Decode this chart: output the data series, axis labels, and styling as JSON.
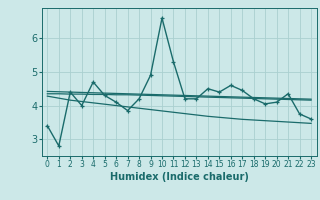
{
  "title": "",
  "xlabel": "Humidex (Indice chaleur)",
  "background_color": "#cce8e8",
  "grid_color": "#aad0d0",
  "line_color": "#1a6b6b",
  "x_values": [
    0,
    1,
    2,
    3,
    4,
    5,
    6,
    7,
    8,
    9,
    10,
    11,
    12,
    13,
    14,
    15,
    16,
    17,
    18,
    19,
    20,
    21,
    22,
    23
  ],
  "y_main": [
    3.4,
    2.8,
    4.4,
    4.0,
    4.7,
    4.3,
    4.1,
    3.85,
    4.2,
    4.9,
    6.6,
    5.3,
    4.2,
    4.2,
    4.5,
    4.4,
    4.6,
    4.45,
    4.2,
    4.05,
    4.1,
    4.35,
    3.75,
    3.6
  ],
  "y_trend1": [
    4.35,
    4.35,
    4.34,
    4.34,
    4.33,
    4.33,
    4.32,
    4.32,
    4.31,
    4.3,
    4.29,
    4.28,
    4.27,
    4.26,
    4.25,
    4.24,
    4.23,
    4.22,
    4.21,
    4.2,
    4.19,
    4.18,
    4.17,
    4.16
  ],
  "y_trend2": [
    4.42,
    4.41,
    4.4,
    4.39,
    4.38,
    4.37,
    4.36,
    4.35,
    4.34,
    4.33,
    4.32,
    4.31,
    4.3,
    4.29,
    4.28,
    4.27,
    4.26,
    4.25,
    4.24,
    4.23,
    4.22,
    4.21,
    4.2,
    4.19
  ],
  "y_lower": [
    4.28,
    4.22,
    4.16,
    4.12,
    4.08,
    4.04,
    4.0,
    3.96,
    3.92,
    3.88,
    3.84,
    3.8,
    3.76,
    3.72,
    3.68,
    3.65,
    3.62,
    3.59,
    3.57,
    3.55,
    3.53,
    3.51,
    3.49,
    3.47
  ],
  "ylim": [
    2.5,
    6.9
  ],
  "yticks": [
    3,
    4,
    5,
    6
  ],
  "xticks": [
    0,
    1,
    2,
    3,
    4,
    5,
    6,
    7,
    8,
    9,
    10,
    11,
    12,
    13,
    14,
    15,
    16,
    17,
    18,
    19,
    20,
    21,
    22,
    23
  ],
  "xlim": [
    -0.5,
    23.5
  ]
}
